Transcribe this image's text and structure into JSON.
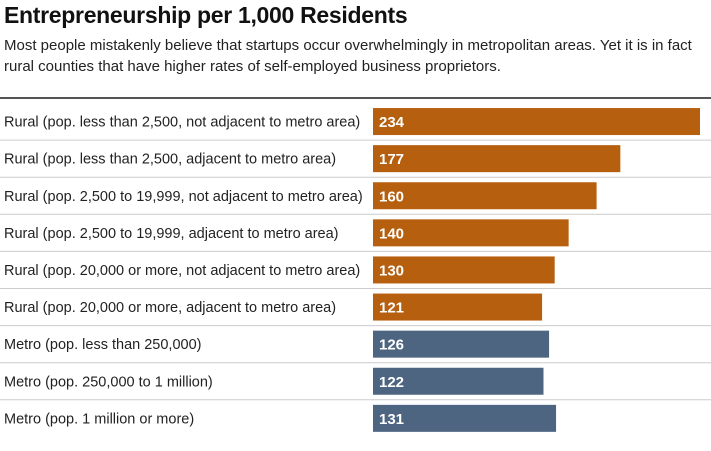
{
  "title": "Entrepreneurship per 1,000 Residents",
  "subtitle": "Most people mistakenly believe that startups occur overwhelmingly in metropolitan areas. Yet it is in fact rural counties that have higher rates of self-employed business proprietors.",
  "colors": {
    "rural": "#b65f0e",
    "metro": "#4d6581",
    "rule": "#555555",
    "divider": "#cccccc"
  },
  "chart_data": {
    "type": "bar",
    "orientation": "horizontal",
    "title": "Entrepreneurship per 1,000 Residents",
    "xlabel": "",
    "ylabel": "",
    "xlim": [
      0,
      234
    ],
    "categories": [
      "Rural (pop. less than 2,500, not adjacent to metro area)",
      "Rural (pop. less than 2,500, adjacent to metro area)",
      "Rural (pop. 2,500 to 19,999, not adjacent to metro area)",
      "Rural (pop. 2,500 to 19,999, adjacent to metro area)",
      "Rural (pop. 20,000 or more, not adjacent to metro area)",
      "Rural (pop. 20,000 or more, adjacent to metro area)",
      "Metro (pop. less than 250,000)",
      "Metro (pop. 250,000 to 1 million)",
      "Metro (pop. 1 million or more)"
    ],
    "values": [
      234,
      177,
      160,
      140,
      130,
      121,
      126,
      122,
      131
    ],
    "groups": [
      "rural",
      "rural",
      "rural",
      "rural",
      "rural",
      "rural",
      "metro",
      "metro",
      "metro"
    ]
  }
}
